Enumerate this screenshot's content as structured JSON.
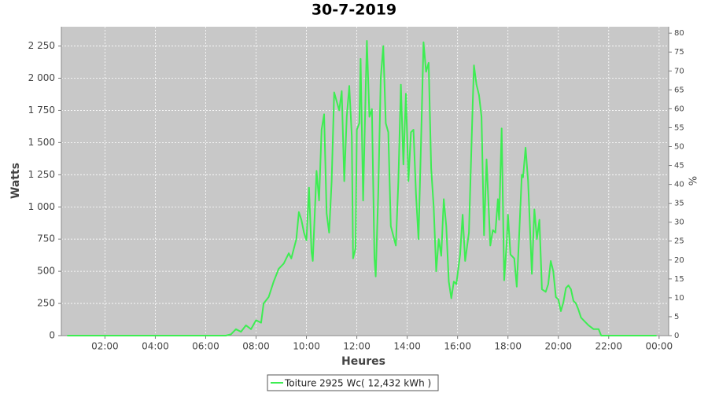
{
  "chart_data": {
    "type": "line",
    "title": "30-7-2019",
    "x_label": "Heures",
    "y_label": "Watts",
    "y2_label": "%",
    "x": [
      0.5,
      6.8,
      7.0,
      7.2,
      7.4,
      7.6,
      7.8,
      8.0,
      8.2,
      8.3,
      8.5,
      8.7,
      8.9,
      9.1,
      9.3,
      9.4,
      9.6,
      9.7,
      9.8,
      9.9,
      10.0,
      10.1,
      10.2,
      10.25,
      10.4,
      10.5,
      10.6,
      10.7,
      10.8,
      10.9,
      11.0,
      11.1,
      11.2,
      11.3,
      11.4,
      11.5,
      11.6,
      11.7,
      11.8,
      11.85,
      11.95,
      12.0,
      12.1,
      12.15,
      12.25,
      12.35,
      12.4,
      12.5,
      12.6,
      12.7,
      12.75,
      12.85,
      12.95,
      13.05,
      13.15,
      13.25,
      13.35,
      13.55,
      13.65,
      13.75,
      13.85,
      13.95,
      14.05,
      14.15,
      14.25,
      14.35,
      14.45,
      14.55,
      14.65,
      14.75,
      14.85,
      14.95,
      15.05,
      15.15,
      15.25,
      15.35,
      15.45,
      15.55,
      15.65,
      15.75,
      15.85,
      15.95,
      16.1,
      16.2,
      16.3,
      16.45,
      16.6,
      16.65,
      16.75,
      16.85,
      16.95,
      17.05,
      17.15,
      17.3,
      17.4,
      17.5,
      17.6,
      17.65,
      17.75,
      17.85,
      17.95,
      18.0,
      18.1,
      18.25,
      18.35,
      18.45,
      18.55,
      18.6,
      18.7,
      18.8,
      18.95,
      19.05,
      19.15,
      19.25,
      19.35,
      19.5,
      19.6,
      19.7,
      19.8,
      19.9,
      20.0,
      20.1,
      20.2,
      20.3,
      20.4,
      20.5,
      20.6,
      20.7,
      20.8,
      20.9,
      21.0,
      21.2,
      21.4,
      21.6,
      21.7,
      23.9
    ],
    "series": [
      {
        "name": "Toiture 2925 Wc( 12,432 kWh )",
        "color": "#3ded52",
        "values": [
          0,
          0,
          10,
          50,
          30,
          80,
          50,
          120,
          100,
          250,
          300,
          420,
          520,
          560,
          640,
          600,
          750,
          960,
          900,
          800,
          740,
          1150,
          650,
          580,
          1280,
          1050,
          1600,
          1720,
          950,
          800,
          1200,
          1890,
          1820,
          1750,
          1900,
          1200,
          1700,
          1940,
          1550,
          600,
          680,
          1600,
          1650,
          2150,
          1050,
          1900,
          2290,
          1700,
          1760,
          600,
          460,
          1100,
          2000,
          2250,
          1650,
          1580,
          850,
          700,
          1200,
          1950,
          1330,
          1880,
          1200,
          1580,
          1600,
          1100,
          750,
          1500,
          2280,
          2050,
          2120,
          1300,
          1000,
          500,
          750,
          620,
          1060,
          850,
          420,
          290,
          420,
          400,
          630,
          940,
          580,
          800,
          1800,
          2100,
          1950,
          1870,
          1700,
          780,
          1370,
          700,
          820,
          800,
          1060,
          900,
          1610,
          430,
          720,
          940,
          630,
          600,
          380,
          800,
          1250,
          1230,
          1460,
          1200,
          480,
          980,
          750,
          900,
          360,
          340,
          400,
          580,
          500,
          300,
          280,
          190,
          260,
          370,
          390,
          360,
          270,
          250,
          200,
          140,
          120,
          80,
          50,
          50,
          0,
          0
        ]
      }
    ],
    "xlim": [
      0.27,
      24.38
    ],
    "xticks": [
      {
        "value": 2,
        "label": "02:00"
      },
      {
        "value": 4,
        "label": "04:00"
      },
      {
        "value": 6,
        "label": "06:00"
      },
      {
        "value": 8,
        "label": "08:00"
      },
      {
        "value": 10,
        "label": "10:00"
      },
      {
        "value": 12,
        "label": "12:00"
      },
      {
        "value": 14,
        "label": "14:00"
      },
      {
        "value": 16,
        "label": "16:00"
      },
      {
        "value": 18,
        "label": "18:00"
      },
      {
        "value": 20,
        "label": "20:00"
      },
      {
        "value": 22,
        "label": "22:00"
      },
      {
        "value": 24,
        "label": "00:00"
      }
    ],
    "ylim": [
      0,
      2400
    ],
    "yticks": [
      0,
      250,
      500,
      750,
      {
        "value": 1000,
        "label": "1 000"
      },
      {
        "value": 1250,
        "label": "1 250"
      },
      {
        "value": 1500,
        "label": "1 500"
      },
      {
        "value": 1750,
        "label": "1 750"
      },
      {
        "value": 2000,
        "label": "2 000"
      },
      {
        "value": 2250,
        "label": "2 250"
      }
    ],
    "y2lim": [
      0,
      81.7
    ],
    "y2ticks": [
      0,
      5,
      10,
      15,
      20,
      25,
      30,
      35,
      40,
      45,
      50,
      55,
      60,
      65,
      70,
      75,
      80
    ],
    "grid": true,
    "legend": "bottom"
  }
}
